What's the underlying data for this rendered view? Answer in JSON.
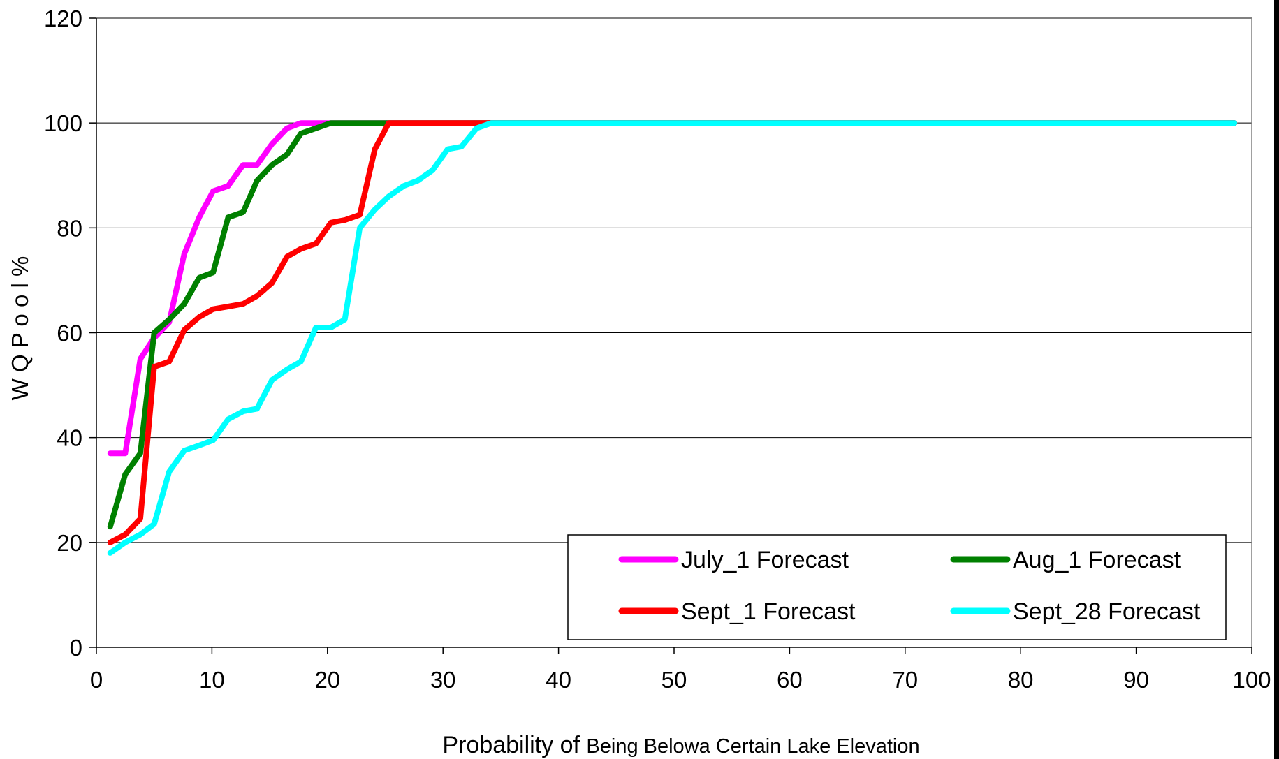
{
  "chart_data": {
    "type": "line",
    "title": "",
    "xlabel_main": "Probability of",
    "xlabel_rest": "Being Belowa Certain Lake Elevation",
    "ylabel": "W Q  P o o l  %",
    "xlim": [
      0,
      100
    ],
    "ylim": [
      0,
      120
    ],
    "xticks": [
      "0",
      "10",
      "20",
      "30",
      "40",
      "50",
      "60",
      "70",
      "80",
      "90",
      "100"
    ],
    "yticks": [
      "0",
      "20",
      "40",
      "60",
      "80",
      "100",
      "120"
    ],
    "grid": "horizontal",
    "legend_position": "bottom-right",
    "series": [
      {
        "name": "July_1 Forecast",
        "color": "#ff00ff",
        "points": [
          [
            1.2,
            37
          ],
          [
            2.5,
            37
          ],
          [
            3.8,
            55
          ],
          [
            5,
            59
          ],
          [
            6.3,
            62
          ],
          [
            7.6,
            75
          ],
          [
            8.9,
            82
          ],
          [
            10.1,
            87
          ],
          [
            11.4,
            88
          ],
          [
            12.7,
            92
          ],
          [
            13.9,
            92
          ],
          [
            15.2,
            96
          ],
          [
            16.5,
            99
          ],
          [
            17.7,
            100
          ],
          [
            19,
            100
          ],
          [
            20.3,
            100
          ],
          [
            98.5,
            100
          ]
        ]
      },
      {
        "name": "Aug_1 Forecast",
        "color": "#008000",
        "points": [
          [
            1.2,
            23
          ],
          [
            2.5,
            33
          ],
          [
            3.8,
            37
          ],
          [
            5,
            60
          ],
          [
            6.3,
            62.5
          ],
          [
            7.6,
            65.5
          ],
          [
            8.9,
            70.5
          ],
          [
            10.1,
            71.5
          ],
          [
            11.4,
            82
          ],
          [
            12.7,
            83
          ],
          [
            13.9,
            89
          ],
          [
            15.2,
            92
          ],
          [
            16.5,
            94
          ],
          [
            17.7,
            98
          ],
          [
            19,
            99
          ],
          [
            20.3,
            100
          ],
          [
            21.5,
            100
          ],
          [
            98.5,
            100
          ]
        ]
      },
      {
        "name": "Sept_1 Forecast",
        "color": "#ff0000",
        "points": [
          [
            1.2,
            20
          ],
          [
            2.5,
            21.5
          ],
          [
            3.8,
            24.5
          ],
          [
            5,
            53.5
          ],
          [
            6.3,
            54.5
          ],
          [
            7.6,
            60.5
          ],
          [
            8.9,
            63
          ],
          [
            10.1,
            64.5
          ],
          [
            11.4,
            65
          ],
          [
            12.7,
            65.5
          ],
          [
            13.9,
            67
          ],
          [
            15.2,
            69.5
          ],
          [
            16.5,
            74.5
          ],
          [
            17.7,
            76
          ],
          [
            19,
            77
          ],
          [
            20.3,
            81
          ],
          [
            21.5,
            81.5
          ],
          [
            22.8,
            82.5
          ],
          [
            24.1,
            95
          ],
          [
            25.3,
            100
          ],
          [
            26.6,
            100
          ],
          [
            98.5,
            100
          ]
        ]
      },
      {
        "name": "Sept_28 Forecast",
        "color": "#00ffff",
        "points": [
          [
            1.2,
            18
          ],
          [
            2.5,
            20
          ],
          [
            3.8,
            21.5
          ],
          [
            5,
            23.5
          ],
          [
            6.3,
            33.5
          ],
          [
            7.6,
            37.5
          ],
          [
            8.9,
            38.5
          ],
          [
            10.1,
            39.5
          ],
          [
            11.4,
            43.5
          ],
          [
            12.7,
            45
          ],
          [
            13.9,
            45.5
          ],
          [
            15.2,
            51
          ],
          [
            16.5,
            53
          ],
          [
            17.7,
            54.5
          ],
          [
            19,
            61
          ],
          [
            20.3,
            61
          ],
          [
            21.5,
            62.5
          ],
          [
            22.8,
            80
          ],
          [
            24.1,
            83.5
          ],
          [
            25.3,
            86
          ],
          [
            26.6,
            88
          ],
          [
            27.8,
            89
          ],
          [
            29.1,
            91
          ],
          [
            30.4,
            95
          ],
          [
            31.6,
            95.5
          ],
          [
            32.9,
            99
          ],
          [
            34.2,
            100
          ],
          [
            35.4,
            100
          ],
          [
            98.5,
            100
          ]
        ]
      }
    ]
  }
}
